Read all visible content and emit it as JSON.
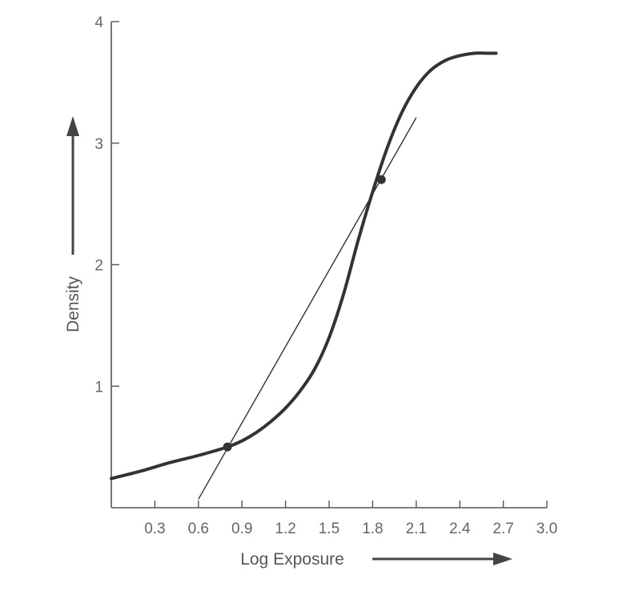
{
  "chart_data": {
    "type": "line",
    "title": "",
    "xlabel": "Log Exposure",
    "ylabel": "Density",
    "xlim": [
      0,
      3.0
    ],
    "ylim": [
      0,
      4
    ],
    "x_ticks": [
      "0.3",
      "0.6",
      "0.9",
      "1.2",
      "1.5",
      "1.8",
      "2.1",
      "2.4",
      "2.7",
      "3.0"
    ],
    "y_ticks": [
      "1",
      "2",
      "3",
      "4"
    ],
    "grid": false,
    "series": [
      {
        "type": "curve",
        "x": [
          0.0,
          0.2,
          0.4,
          0.6,
          0.8,
          0.9,
          1.0,
          1.1,
          1.2,
          1.3,
          1.4,
          1.5,
          1.6,
          1.7,
          1.8,
          1.9,
          2.0,
          2.1,
          2.2,
          2.3,
          2.4,
          2.5,
          2.6,
          2.65
        ],
        "y": [
          0.24,
          0.3,
          0.37,
          0.43,
          0.5,
          0.55,
          0.62,
          0.71,
          0.82,
          0.96,
          1.14,
          1.4,
          1.76,
          2.2,
          2.6,
          2.96,
          3.25,
          3.46,
          3.6,
          3.68,
          3.72,
          3.74,
          3.74,
          3.74
        ]
      },
      {
        "type": "tangent-line",
        "x": [
          0.6,
          2.1
        ],
        "y": [
          0.07,
          3.21
        ]
      }
    ],
    "points": [
      {
        "x": 0.8,
        "y": 0.5
      },
      {
        "x": 1.86,
        "y": 2.7
      }
    ]
  }
}
